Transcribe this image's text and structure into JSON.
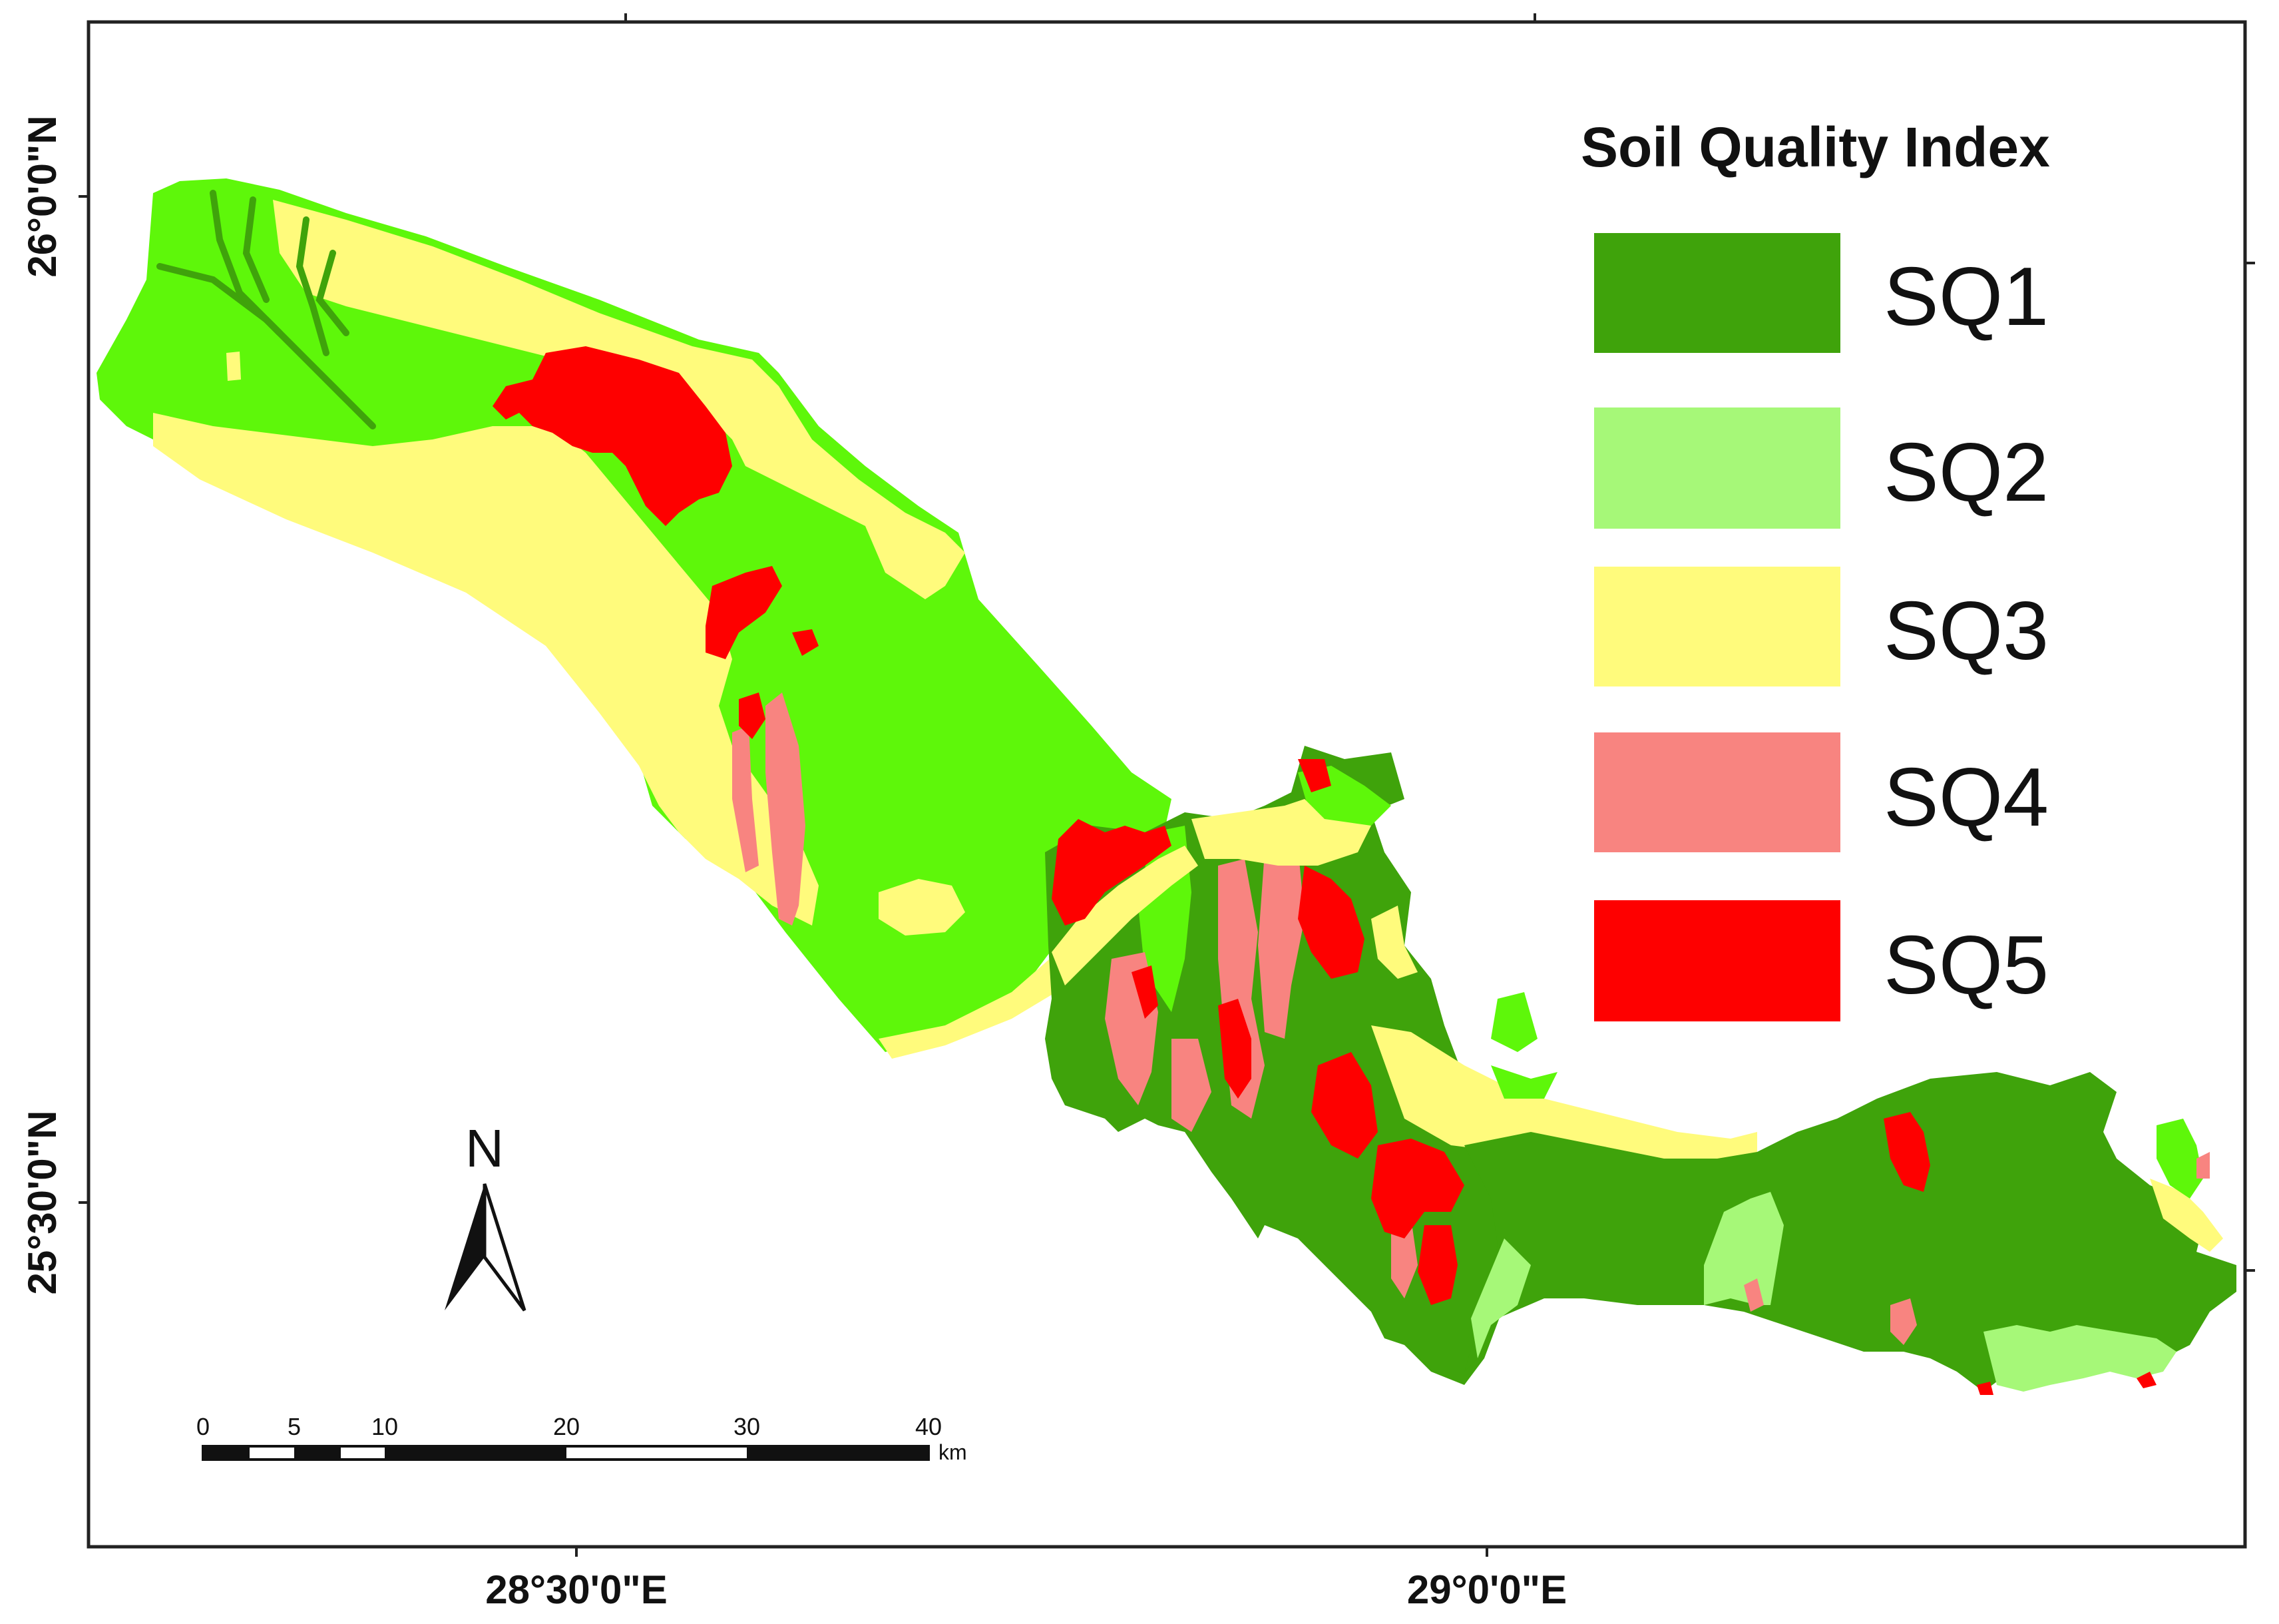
{
  "legend": {
    "title": "Soil Quality Index",
    "items": [
      {
        "label": "SQ1",
        "color": "#3fa30b"
      },
      {
        "label": "SQ2",
        "color": "#a6f878"
      },
      {
        "label": "SQ3",
        "color": "#fffb7c"
      },
      {
        "label": "SQ4",
        "color": "#f88480"
      },
      {
        "label": "SQ5",
        "color": "#fe0000"
      }
    ]
  },
  "axes": {
    "lat_top": "26°0'0\"N",
    "lat_bottom": "25°30'0\"N",
    "lon_left": "28°30'0\"E",
    "lon_right": "29°0'0\"E"
  },
  "north_arrow": {
    "label": "N"
  },
  "scale_bar": {
    "ticks": [
      "0",
      "5",
      "10",
      "20",
      "30",
      "40"
    ],
    "unit": "km"
  },
  "colors": {
    "bright_green": "#5ef70a",
    "sq1": "#3fa30b",
    "sq2": "#a6f878",
    "sq3": "#fffb7c",
    "sq4": "#f88480",
    "sq5": "#fe0000"
  }
}
